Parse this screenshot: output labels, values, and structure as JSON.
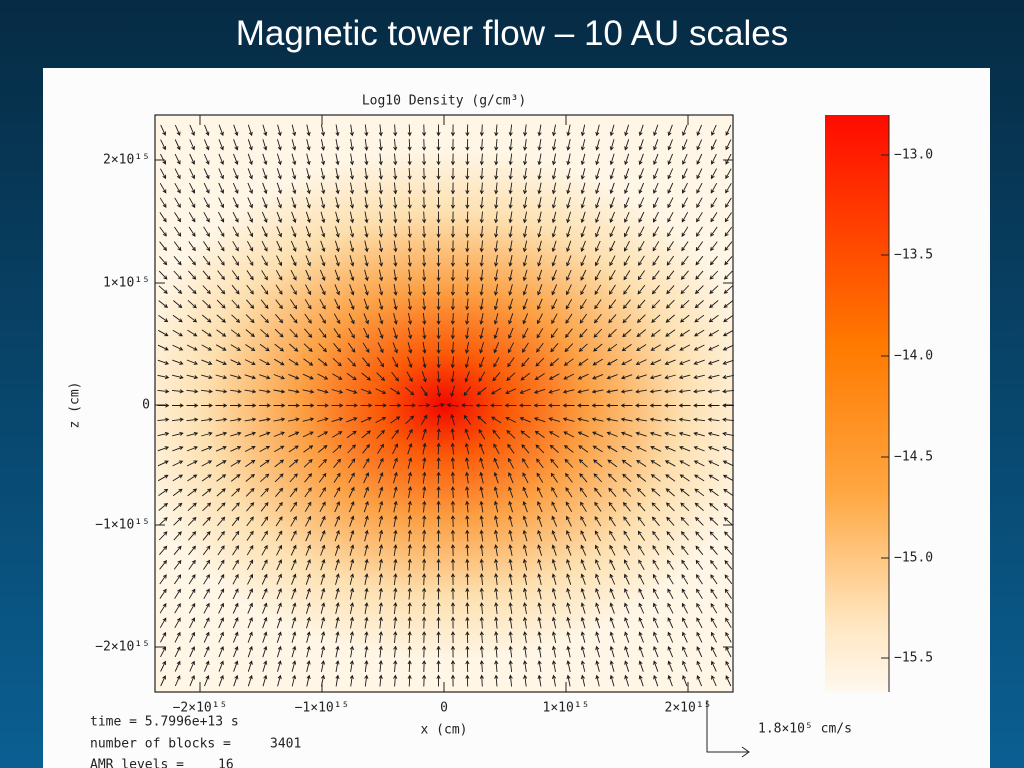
{
  "slide_title": "Magnetic tower flow – 10 AU scales",
  "plot": {
    "title": "Log10 Density (g/cm³)",
    "x_label": "x (cm)",
    "y_label": "z (cm)",
    "x_ticks": [
      "−2×10¹⁵",
      "−1×10¹⁵",
      "0",
      "1×10¹⁵",
      "2×10¹⁵"
    ],
    "y_ticks": [
      "2×10¹⁵",
      "1×10¹⁵",
      "0",
      "−1×10¹⁵",
      "−2×10¹⁵"
    ],
    "colorbar_ticks": [
      "−13.0",
      "−13.5",
      "−14.0",
      "−14.5",
      "−15.0",
      "−15.5"
    ],
    "vector_scale": "1.8×10⁵ cm/s"
  },
  "info": {
    "time": "time =  5.7996e+13 s",
    "blocks_label": "number of blocks =",
    "blocks_value": "3401",
    "amr_label": "AMR levels =",
    "amr_value": "16"
  }
}
